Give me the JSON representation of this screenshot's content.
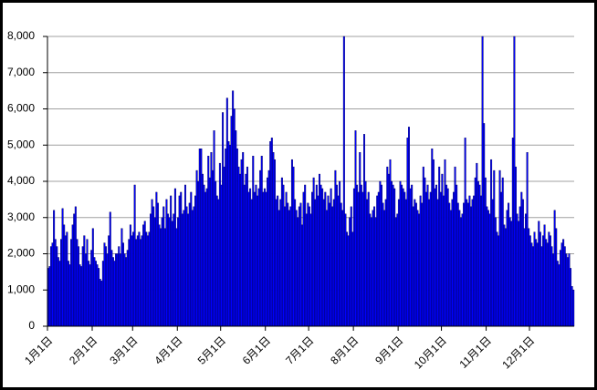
{
  "chart_data": {
    "type": "bar",
    "color": "#0000ff",
    "grid": true,
    "ylim": [
      0,
      8000
    ],
    "yticks": [
      0,
      {
        "value": 1000,
        "label": "1,000"
      },
      {
        "value": 2000,
        "label": "2,000"
      },
      {
        "value": 3000,
        "label": "3,000"
      },
      {
        "value": 4000,
        "label": "4,000"
      },
      {
        "value": 5000,
        "label": "5,000"
      },
      {
        "value": 6000,
        "label": "6,000"
      },
      {
        "value": 7000,
        "label": "7,000"
      },
      {
        "value": 8000,
        "label": "8,000"
      }
    ],
    "categories": [
      "1月1日",
      null,
      null,
      null,
      null,
      null,
      null,
      null,
      null,
      null,
      null,
      null,
      null,
      null,
      null,
      null,
      null,
      null,
      null,
      null,
      null,
      null,
      null,
      null,
      null,
      null,
      null,
      null,
      null,
      null,
      null,
      "2月1日",
      null,
      null,
      null,
      null,
      null,
      null,
      null,
      null,
      null,
      null,
      null,
      null,
      null,
      null,
      null,
      null,
      null,
      null,
      null,
      null,
      null,
      null,
      null,
      null,
      null,
      null,
      null,
      "3月1日",
      null,
      null,
      null,
      null,
      null,
      null,
      null,
      null,
      null,
      null,
      null,
      null,
      null,
      null,
      null,
      null,
      null,
      null,
      null,
      null,
      null,
      null,
      null,
      null,
      null,
      null,
      null,
      null,
      null,
      null,
      "4月1日",
      null,
      null,
      null,
      null,
      null,
      null,
      null,
      null,
      null,
      null,
      null,
      null,
      null,
      null,
      null,
      null,
      null,
      null,
      null,
      null,
      null,
      null,
      null,
      null,
      null,
      null,
      null,
      null,
      null,
      "5月1日",
      null,
      null,
      null,
      null,
      null,
      null,
      null,
      null,
      null,
      null,
      null,
      null,
      null,
      null,
      null,
      null,
      null,
      null,
      null,
      null,
      null,
      null,
      null,
      null,
      null,
      null,
      null,
      null,
      null,
      null,
      "6月1日",
      null,
      null,
      null,
      null,
      null,
      null,
      null,
      null,
      null,
      null,
      null,
      null,
      null,
      null,
      null,
      null,
      null,
      null,
      null,
      null,
      null,
      null,
      null,
      null,
      null,
      null,
      null,
      null,
      null,
      "7月1日",
      null,
      null,
      null,
      null,
      null,
      null,
      null,
      null,
      null,
      null,
      null,
      null,
      null,
      null,
      null,
      null,
      null,
      null,
      null,
      null,
      null,
      null,
      null,
      null,
      null,
      null,
      null,
      null,
      null,
      null,
      "8月1日",
      null,
      null,
      null,
      null,
      null,
      null,
      null,
      null,
      null,
      null,
      null,
      null,
      null,
      null,
      null,
      null,
      null,
      null,
      null,
      null,
      null,
      null,
      null,
      null,
      null,
      null,
      null,
      null,
      null,
      null,
      "9月1日",
      null,
      null,
      null,
      null,
      null,
      null,
      null,
      null,
      null,
      null,
      null,
      null,
      null,
      null,
      null,
      null,
      null,
      null,
      null,
      null,
      null,
      null,
      null,
      null,
      null,
      null,
      null,
      null,
      null,
      "10月1日",
      null,
      null,
      null,
      null,
      null,
      null,
      null,
      null,
      null,
      null,
      null,
      null,
      null,
      null,
      null,
      null,
      null,
      null,
      null,
      null,
      null,
      null,
      null,
      null,
      null,
      null,
      null,
      null,
      null,
      null,
      "11月1日",
      null,
      null,
      null,
      null,
      null,
      null,
      null,
      null,
      null,
      null,
      null,
      null,
      null,
      null,
      null,
      null,
      null,
      null,
      null,
      null,
      null,
      null,
      null,
      null,
      null,
      null,
      null,
      null,
      null,
      "12月1日",
      null,
      null,
      null,
      null,
      null,
      null,
      null,
      null,
      null,
      null,
      null,
      null,
      null,
      null,
      null,
      null,
      null,
      null,
      null,
      null,
      null,
      null,
      null,
      null,
      null,
      null,
      null,
      null,
      null,
      null
    ],
    "values": [
      1600,
      1650,
      2200,
      2300,
      3200,
      2400,
      2200,
      1900,
      1800,
      2400,
      3250,
      2800,
      2500,
      2600,
      1800,
      1700,
      2400,
      2800,
      3100,
      3300,
      2400,
      2200,
      1700,
      1650,
      2200,
      2500,
      2000,
      2400,
      1800,
      1700,
      2100,
      2700,
      1900,
      1800,
      1700,
      1600,
      1300,
      1250,
      1800,
      2300,
      2200,
      2000,
      2500,
      3150,
      2100,
      1900,
      1800,
      2000,
      2000,
      2200,
      2000,
      2700,
      2300,
      2000,
      1900,
      2100,
      2400,
      2800,
      2500,
      2600,
      3900,
      2400,
      2500,
      2600,
      2400,
      2500,
      2800,
      2900,
      2600,
      2500,
      2600,
      3100,
      3500,
      3300,
      3000,
      3700,
      3400,
      2800,
      2700,
      3000,
      3300,
      2700,
      3500,
      3100,
      3000,
      3600,
      2900,
      3100,
      3800,
      2700,
      3000,
      3600,
      3700,
      3100,
      3200,
      3900,
      3300,
      3100,
      3400,
      3700,
      3200,
      3300,
      3600,
      4300,
      4000,
      4900,
      4900,
      4200,
      3900,
      3700,
      3800,
      4700,
      4100,
      4800,
      4300,
      5400,
      4000,
      3600,
      3500,
      4500,
      3900,
      5900,
      4400,
      4900,
      6300,
      5100,
      5000,
      5800,
      6500,
      6000,
      5400,
      4900,
      4400,
      4200,
      4600,
      4800,
      3900,
      4200,
      4400,
      3700,
      3800,
      3500,
      4700,
      3700,
      3900,
      3600,
      3800,
      4300,
      4700,
      3700,
      3800,
      3700,
      4100,
      4300,
      5100,
      5200,
      4800,
      4600,
      3500,
      3600,
      3200,
      3500,
      4100,
      3900,
      3300,
      3700,
      3400,
      3200,
      3300,
      4600,
      4400,
      3500,
      3200,
      3000,
      3300,
      3400,
      2800,
      3700,
      3900,
      3100,
      3400,
      3300,
      3100,
      3700,
      4100,
      3500,
      3900,
      3600,
      4200,
      3900,
      3800,
      3500,
      3700,
      3200,
      3600,
      3400,
      3800,
      3300,
      3500,
      4300,
      3900,
      3600,
      4000,
      3400,
      3200,
      8000,
      3100,
      2600,
      2500,
      3000,
      3300,
      2600,
      3800,
      5400,
      3900,
      3700,
      4800,
      3900,
      3700,
      5300,
      4000,
      3500,
      3700,
      3100,
      3000,
      3200,
      3300,
      3000,
      3600,
      3700,
      4000,
      3900,
      3400,
      3200,
      3500,
      4400,
      4200,
      4600,
      4000,
      3900,
      3800,
      3000,
      3100,
      3500,
      4000,
      3900,
      3800,
      3700,
      3500,
      5200,
      5500,
      3800,
      3900,
      3300,
      3500,
      3400,
      3200,
      3100,
      3600,
      3400,
      4400,
      4100,
      3700,
      3900,
      3500,
      3700,
      4900,
      4600,
      3800,
      3900,
      3500,
      4400,
      3700,
      4200,
      3600,
      4600,
      3900,
      3800,
      3400,
      3200,
      3500,
      3700,
      4400,
      3900,
      3400,
      3200,
      3000,
      3100,
      3400,
      5200,
      3500,
      3400,
      3600,
      3300,
      3500,
      3600,
      4100,
      4500,
      4000,
      3900,
      3600,
      8000,
      5600,
      4100,
      3300,
      3200,
      3100,
      4600,
      3500,
      4300,
      3000,
      2600,
      2500,
      4300,
      3700,
      4100,
      2800,
      2700,
      3200,
      3400,
      3000,
      2900,
      5200,
      8000,
      4400,
      3100,
      2900,
      3300,
      3700,
      3500,
      2700,
      3100,
      4800,
      2700,
      2500,
      2300,
      2200,
      2600,
      2400,
      2300,
      2900,
      2600,
      2200,
      2500,
      2800,
      2400,
      2300,
      2600,
      2500,
      2200,
      2000,
      3200,
      2700,
      1800,
      1700,
      2100,
      2300,
      2400,
      2200,
      2000,
      1900,
      2000,
      1600,
      1100,
      1000
    ]
  }
}
